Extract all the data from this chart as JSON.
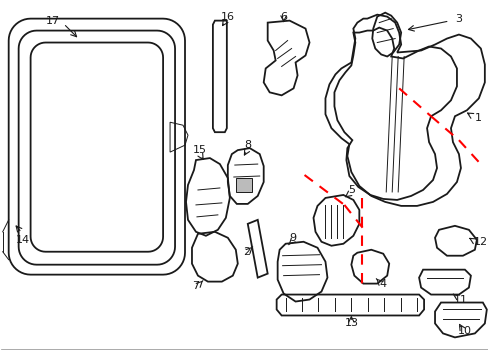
{
  "background_color": "#ffffff",
  "line_color": "#1a1a1a",
  "red_color": "#ff0000",
  "fig_width": 4.89,
  "fig_height": 3.6,
  "dpi": 100,
  "border_color": "#cccccc",
  "lw_main": 1.3,
  "lw_thin": 0.7,
  "label_fs": 8,
  "label_arrow_lw": 0.8
}
